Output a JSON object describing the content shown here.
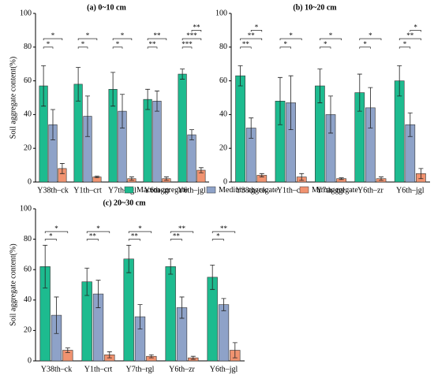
{
  "legend": [
    {
      "name": "Macroaggregate",
      "color": "#1dbb8f"
    },
    {
      "name": "Medium aggregate",
      "color": "#8ea2c8"
    },
    {
      "name": "Miroaggregate",
      "color": "#f19370"
    }
  ],
  "chart_data": [
    {
      "type": "bar",
      "title": "(a) 0~10 cm",
      "ylabel": "Soil aggregate content(%)",
      "categories": [
        "Y38th–ck",
        "Y1th–crt",
        "Y7th–rgl",
        "Y6th–zr",
        "Y6th–jgl"
      ],
      "series": [
        {
          "values": [
            57,
            58,
            55,
            49,
            64
          ],
          "errors": [
            12,
            10,
            10,
            6,
            3
          ]
        },
        {
          "values": [
            34,
            39,
            42,
            48,
            28
          ],
          "errors": [
            9,
            12,
            10,
            6,
            3
          ]
        },
        {
          "values": [
            8,
            3,
            2,
            2,
            7
          ],
          "errors": [
            3,
            0.5,
            1,
            1,
            1.5
          ]
        }
      ],
      "significance": [
        [
          "*",
          "*"
        ],
        [
          "*",
          "*"
        ],
        [
          "*",
          "*"
        ],
        [
          "**",
          "**"
        ],
        [
          "***",
          "***",
          "**"
        ]
      ],
      "ylim": [
        0,
        100
      ],
      "yticks": [
        0,
        20,
        40,
        60,
        80,
        100
      ]
    },
    {
      "type": "bar",
      "title": "(b) 10~20 cm",
      "categories": [
        "Y38th–ck",
        "Y1th–crt",
        "Y7th–rgl",
        "Y6th–zr",
        "Y6th–jgl"
      ],
      "series": [
        {
          "values": [
            63,
            48,
            57,
            53,
            60
          ],
          "errors": [
            6,
            14,
            10,
            11,
            9
          ]
        },
        {
          "values": [
            32,
            47,
            40,
            44,
            34
          ],
          "errors": [
            6,
            16,
            11,
            12,
            7
          ]
        },
        {
          "values": [
            4,
            3,
            2,
            2,
            5
          ],
          "errors": [
            1,
            2,
            0.5,
            1,
            3
          ]
        }
      ],
      "significance": [
        [
          "**",
          "**",
          "*"
        ],
        [
          "*",
          "*"
        ],
        [
          "*",
          "*"
        ],
        [
          "*",
          "*"
        ],
        [
          "*",
          "**",
          "*"
        ]
      ],
      "ylim": [
        0,
        100
      ],
      "yticks": [
        0,
        20,
        40,
        60,
        80,
        100
      ]
    },
    {
      "type": "bar",
      "title": "(c) 20~30 cm",
      "ylabel": "Soil aggregate content(%)",
      "categories": [
        "Y38th–ck",
        "Y1th–crt",
        "Y7th–rgl",
        "Y6th–zr",
        "Y6th–jgl"
      ],
      "series": [
        {
          "values": [
            62,
            52,
            67,
            62,
            55
          ],
          "errors": [
            14,
            9,
            9,
            5,
            8
          ]
        },
        {
          "values": [
            30,
            44,
            29,
            35,
            37
          ],
          "errors": [
            12,
            9,
            8,
            7,
            4
          ]
        },
        {
          "values": [
            7,
            4,
            3,
            2,
            7
          ],
          "errors": [
            1.5,
            2,
            1,
            1,
            5
          ]
        }
      ],
      "significance": [
        [
          "*",
          "*"
        ],
        [
          "**",
          "*"
        ],
        [
          "**",
          "*"
        ],
        [
          "**",
          "**"
        ],
        [
          "*",
          "**"
        ]
      ],
      "ylim": [
        0,
        100
      ],
      "yticks": [
        0,
        20,
        40,
        60,
        80,
        100
      ]
    }
  ]
}
